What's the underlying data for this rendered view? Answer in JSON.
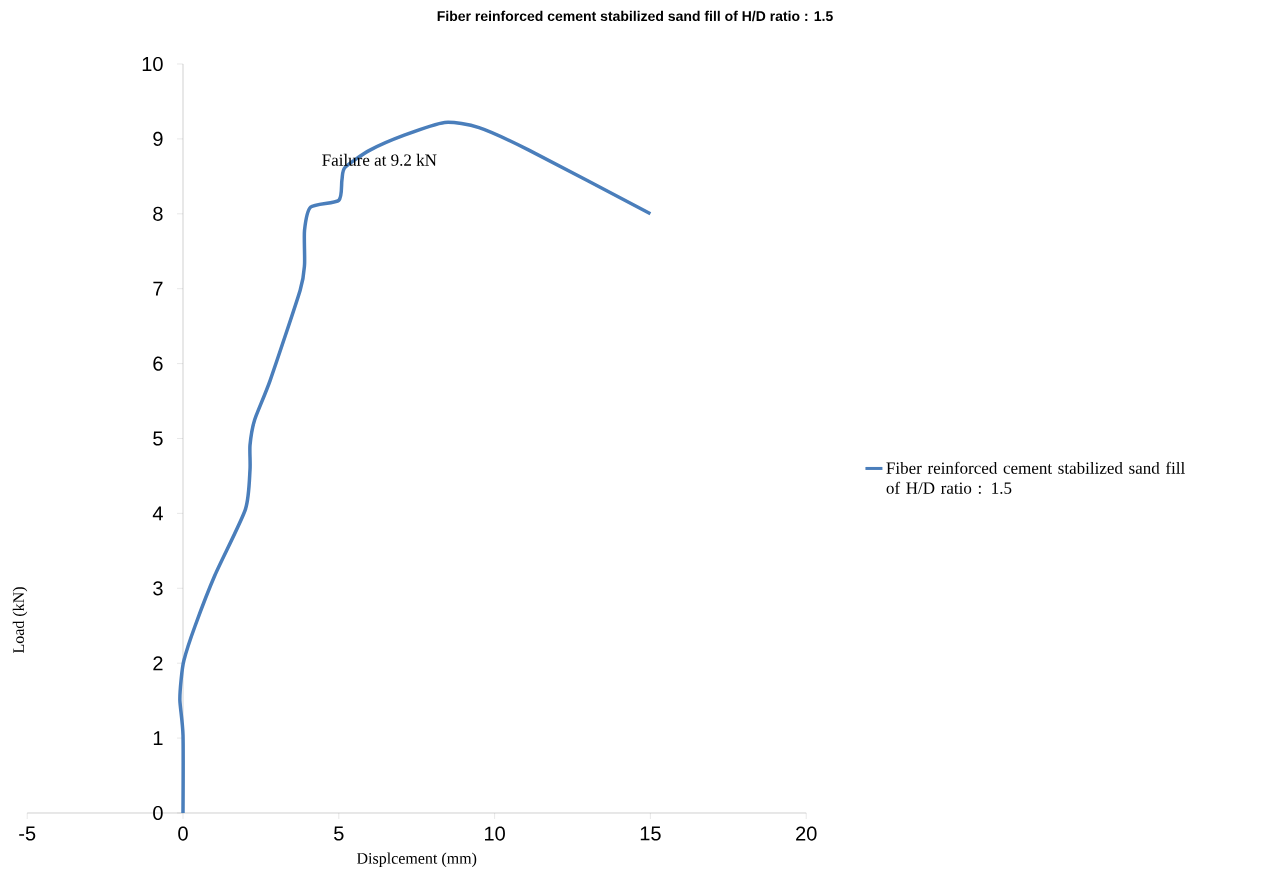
{
  "chart_data": {
    "type": "line",
    "title": "Fiber reinforced cement stabilized sand fill of H/D ratio : 1.5",
    "xlabel": "Displcement (mm)",
    "ylabel": "Load (kN)",
    "annotations": [
      "Failure at 9.2 kN"
    ],
    "xlim": [
      -5,
      20
    ],
    "xticks": [
      -5,
      0,
      5,
      10,
      15,
      20
    ],
    "ylim": [
      0,
      10
    ],
    "yticks": [
      0,
      1,
      2,
      3,
      4,
      5,
      6,
      7,
      8,
      9,
      10
    ],
    "grid": false,
    "legend": "right",
    "marker": "none",
    "line_style": "solid",
    "series": [
      {
        "name": "Fiber reinforced cement stabilized sand fill of H/D ratio : 1.5",
        "color": "#4a7ebb",
        "x": [
          0,
          0,
          -0.1,
          -0.06,
          0.03,
          0.39,
          1.03,
          2.0,
          2.15,
          2.15,
          2.3,
          2.8,
          3.76,
          3.9,
          3.9,
          4.1,
          5.0,
          5.1,
          5.2,
          6.0,
          7.1,
          8.4,
          9.5,
          11.1,
          15
        ],
        "values": [
          0,
          1.04,
          1.5,
          1.78,
          2.04,
          2.5,
          3.18,
          4.05,
          4.58,
          4.91,
          5.25,
          5.78,
          6.98,
          7.32,
          7.78,
          8.09,
          8.18,
          8.45,
          8.62,
          8.85,
          9.05,
          9.22,
          9.15,
          8.85,
          8
        ]
      }
    ]
  }
}
